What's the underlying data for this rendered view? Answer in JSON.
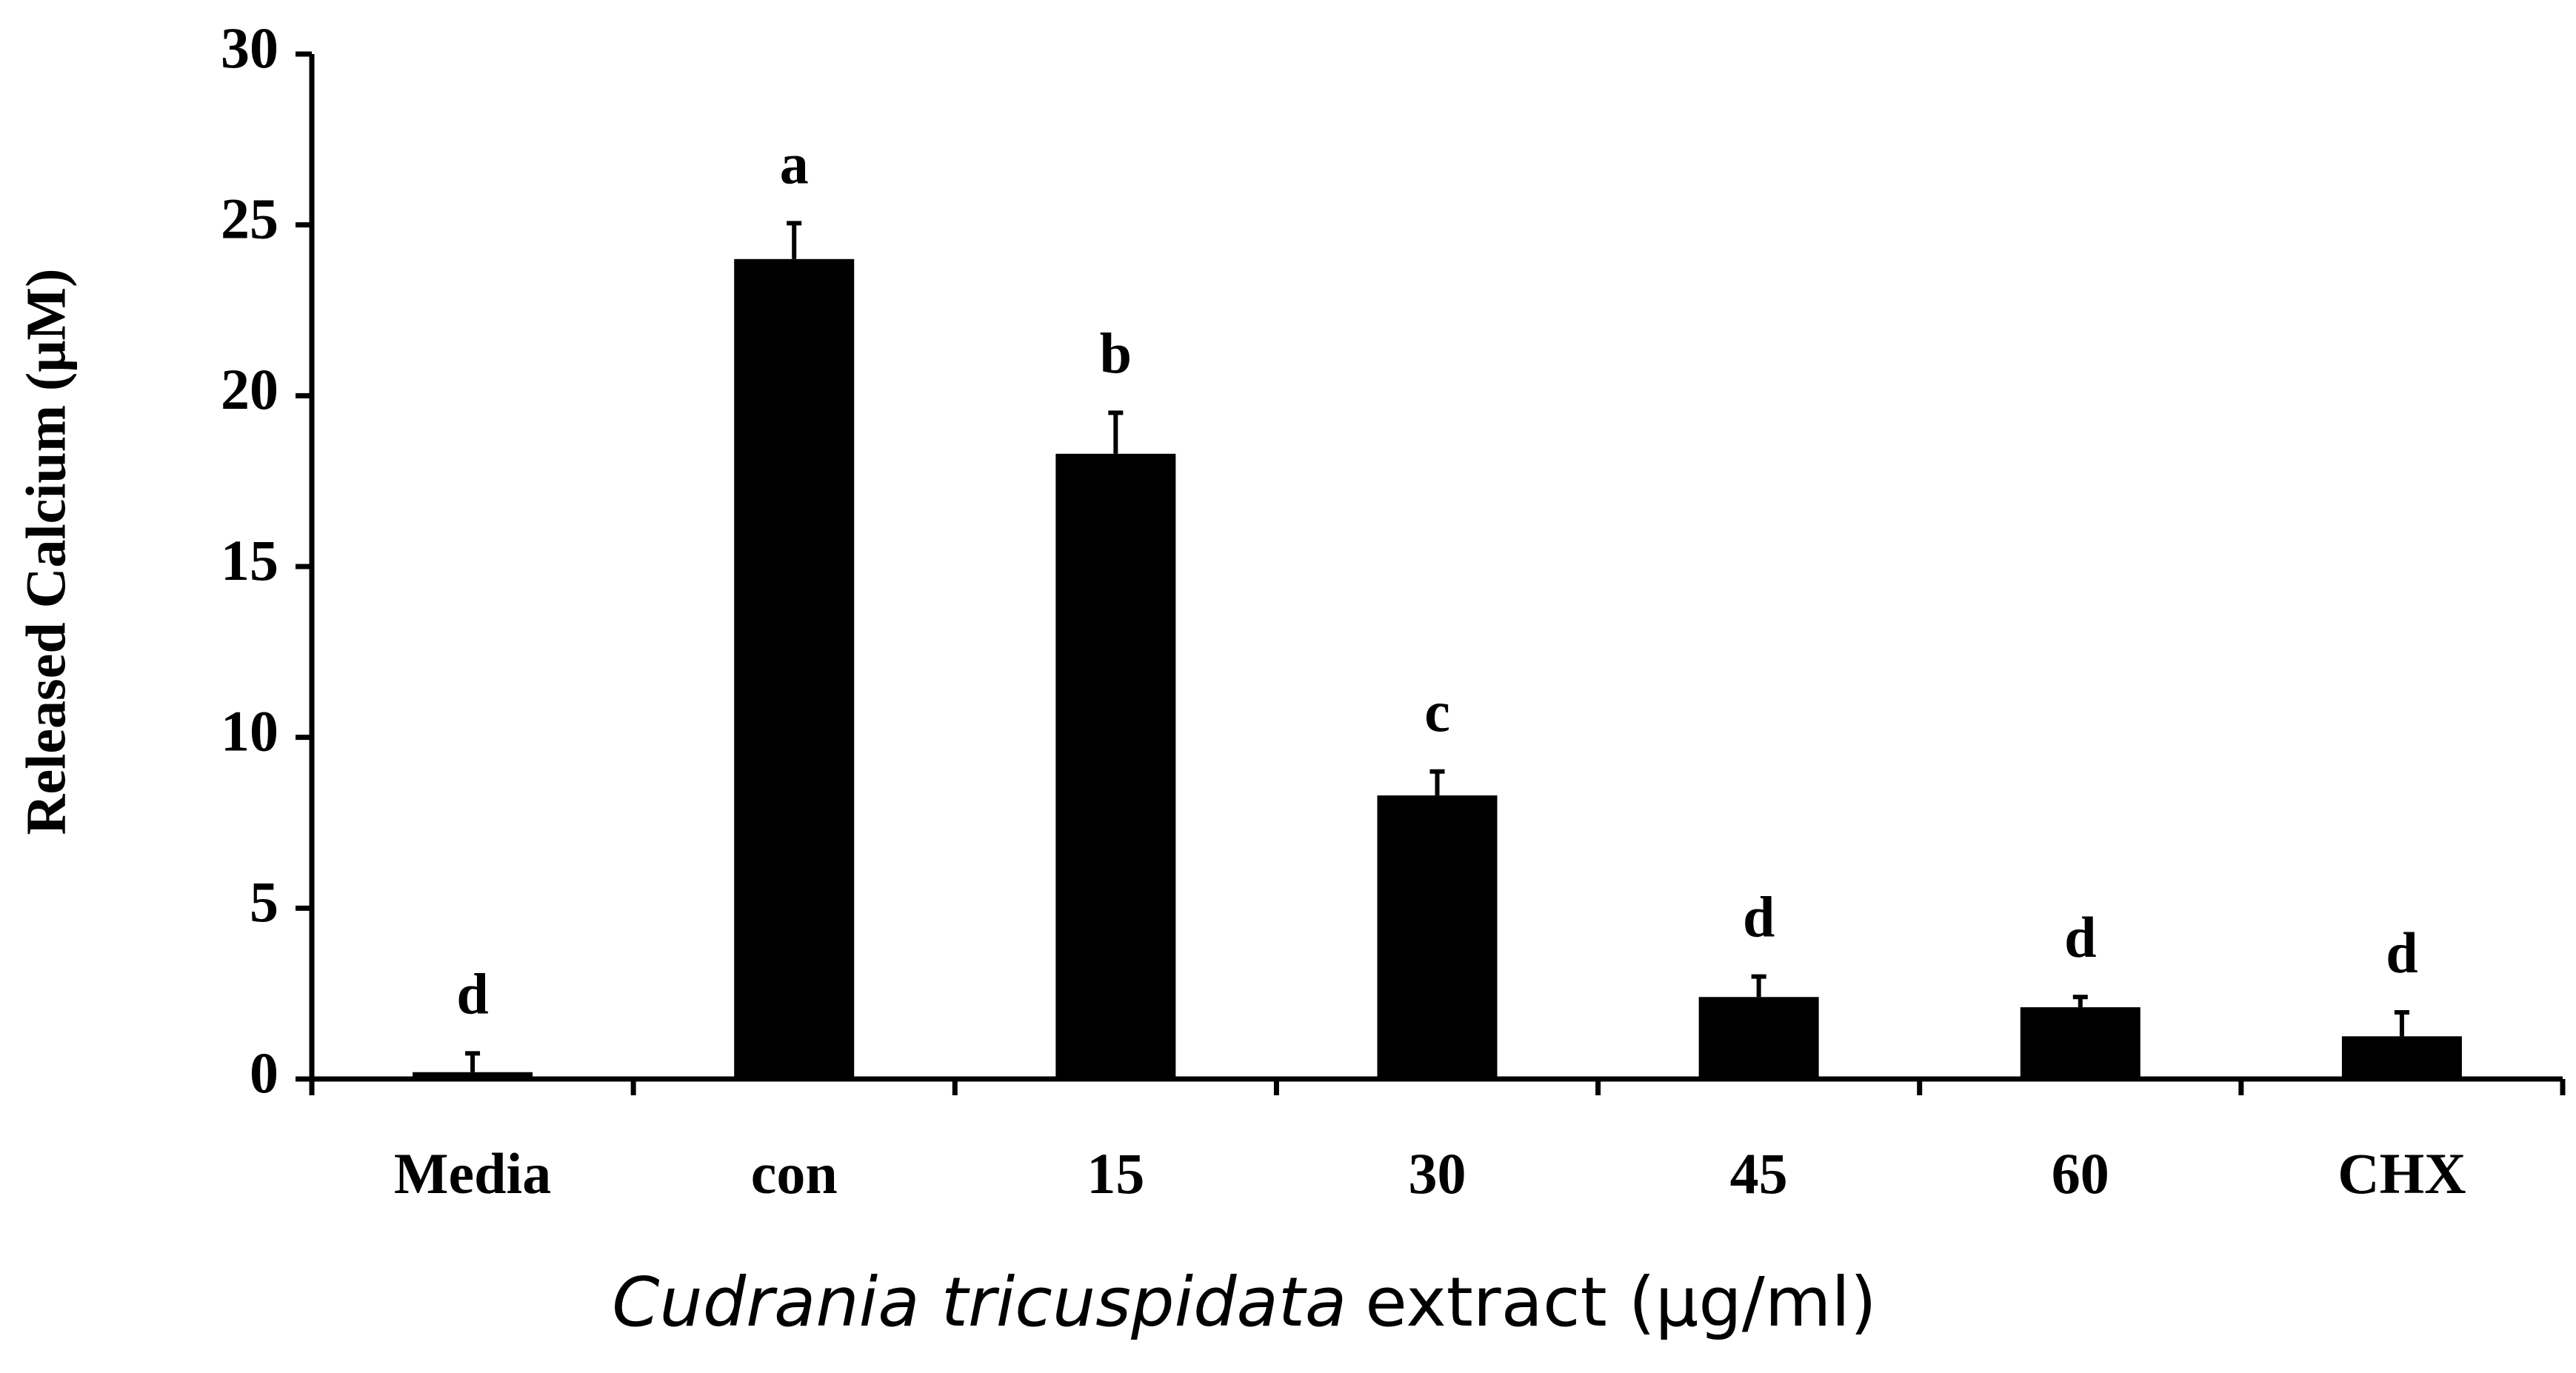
{
  "chart_data": {
    "type": "bar",
    "y_label": "Released Calcium (μM)",
    "x_label": [
      "Cudrania tricuspidata",
      "extract (μg/ml)"
    ],
    "categories": [
      "Media",
      "con",
      "15",
      "30",
      "45",
      "60",
      "CHX"
    ],
    "values": [
      0.2,
      24.0,
      18.3,
      8.3,
      2.4,
      2.1,
      1.25
    ],
    "errors": [
      0.55,
      1.05,
      1.2,
      0.7,
      0.6,
      0.3,
      0.7
    ],
    "annotations": [
      "d",
      "a",
      "b",
      "c",
      "d",
      "d",
      "d"
    ],
    "color": "#000000",
    "ylim": [
      0,
      30
    ],
    "yticks": [
      0,
      5,
      10,
      15,
      20,
      25,
      30
    ],
    "grid": false
  }
}
